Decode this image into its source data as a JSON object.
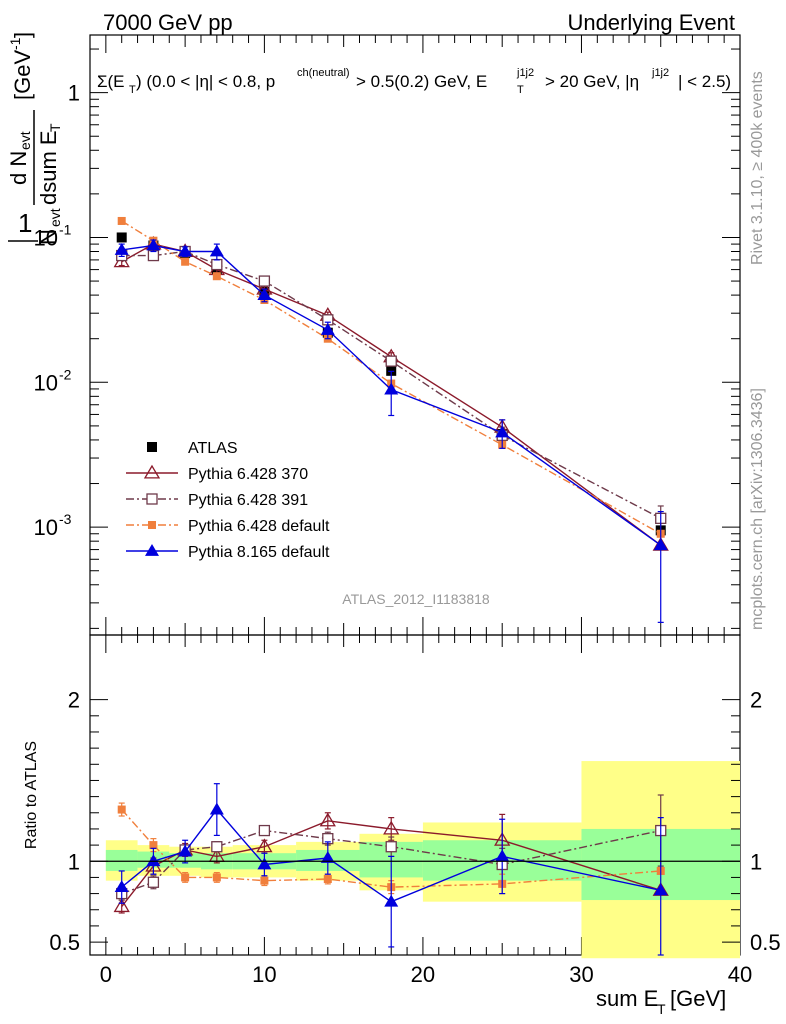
{
  "header": {
    "left": "7000 GeV pp",
    "right": "Underlying Event"
  },
  "side_labels": {
    "rivet": "Rivet 3.1.10, ≥ 400k events",
    "mcplots": "mcplots.cern.ch [arXiv:1306.3436]"
  },
  "analysis_id": "ATLAS_2012_I1183818",
  "chart_data": [
    {
      "type": "line",
      "title": "Σ(E_T) (0.0 < |η| < 0.8, p^ch(neutral) > 0.5(0.2) GeV, E_T^j1j2 > 20 GeV, |η^j1j2| < 2.5)",
      "xlabel": "sum E_T [GeV]",
      "ylabel": "1/N_evt dN_evt/dsum E_T [GeV^-1]",
      "yscale": "log",
      "xlim": [
        -1,
        40
      ],
      "ylim": [
        0.00018,
        2.5
      ],
      "x_ticks": [
        "0",
        "10",
        "20",
        "30",
        "40"
      ],
      "y_ticks": [
        "10^-3",
        "10^-2",
        "10^-1",
        "1"
      ],
      "legend_position": "lower-left",
      "series": [
        {
          "name": "ATLAS",
          "color": "#000000",
          "marker": "filled-square",
          "style": "none",
          "x": [
            1,
            3,
            5,
            7,
            10,
            14,
            18,
            25,
            35
          ],
          "y": [
            0.1,
            0.088,
            0.078,
            0.06,
            0.042,
            0.022,
            0.012,
            0.0044,
            0.00095
          ]
        },
        {
          "name": "Pythia 6.428 370",
          "color": "#8b1a2b",
          "marker": "open-triangle",
          "style": "solid",
          "x": [
            1,
            3,
            5,
            7,
            10,
            14,
            18,
            25,
            35
          ],
          "y": [
            0.068,
            0.09,
            0.08,
            0.06,
            0.044,
            0.029,
            0.015,
            0.0049,
            0.00075
          ],
          "err": [
            0.004,
            0.004,
            0.003,
            0.003,
            0.002,
            0.0015,
            0.001,
            0.0006,
            0
          ]
        },
        {
          "name": "Pythia 6.428 391",
          "color": "#6e3a4a",
          "marker": "open-square",
          "style": "dashdot",
          "x": [
            1,
            3,
            5,
            7,
            10,
            14,
            18,
            25,
            35
          ],
          "y": [
            0.075,
            0.075,
            0.08,
            0.065,
            0.05,
            0.027,
            0.014,
            0.0043,
            0.00115
          ],
          "err": [
            0.004,
            0.004,
            0.003,
            0.003,
            0.002,
            0.0015,
            0.001,
            0.0006,
            0.00025
          ]
        },
        {
          "name": "Pythia 6.428 default",
          "color": "#f07f3c",
          "marker": "filled-square-small",
          "style": "dashdot",
          "x": [
            1,
            3,
            5,
            7,
            10,
            14,
            18,
            25,
            35
          ],
          "y": [
            0.13,
            0.095,
            0.068,
            0.054,
            0.037,
            0.02,
            0.0098,
            0.0037,
            0.0009
          ],
          "err": [
            0,
            0,
            0,
            0,
            0,
            0,
            0,
            0,
            0
          ]
        },
        {
          "name": "Pythia 8.165 default",
          "color": "#0000dd",
          "marker": "filled-triangle",
          "style": "solid",
          "x": [
            1,
            3,
            5,
            7,
            10,
            14,
            18,
            25,
            35
          ],
          "y": [
            0.082,
            0.088,
            0.08,
            0.08,
            0.04,
            0.023,
            0.0089,
            0.0045,
            0.00075
          ],
          "err": [
            0.008,
            0.008,
            0.006,
            0.01,
            0.004,
            0.003,
            0.003,
            0.001,
            0.00053
          ]
        }
      ]
    },
    {
      "type": "line",
      "ylabel": "Ratio to ATLAS",
      "xlabel": "sum E_T [GeV]",
      "xlim": [
        -1,
        40
      ],
      "ylim": [
        0.42,
        2.4
      ],
      "y_ticks": [
        "0.5",
        "1",
        "2"
      ],
      "reference_line": 1,
      "bins": [
        [
          0,
          2
        ],
        [
          2,
          4
        ],
        [
          4,
          6
        ],
        [
          6,
          8
        ],
        [
          8,
          12
        ],
        [
          12,
          16
        ],
        [
          16,
          20
        ],
        [
          20,
          30
        ],
        [
          30,
          40
        ]
      ],
      "band_stat_sys": [
        [
          0.94,
          1.07
        ],
        [
          0.96,
          1.06
        ],
        [
          0.96,
          1.05
        ],
        [
          0.95,
          1.05
        ],
        [
          0.95,
          1.05
        ],
        [
          0.94,
          1.07
        ],
        [
          0.9,
          1.12
        ],
        [
          0.88,
          1.13
        ],
        [
          0.76,
          1.2
        ]
      ],
      "band_total": [
        [
          0.88,
          1.13
        ],
        [
          0.91,
          1.1
        ],
        [
          0.91,
          1.09
        ],
        [
          0.9,
          1.09
        ],
        [
          0.9,
          1.1
        ],
        [
          0.88,
          1.12
        ],
        [
          0.82,
          1.17
        ],
        [
          0.75,
          1.24
        ],
        [
          0.4,
          1.62
        ]
      ],
      "band_colors": {
        "inner": "#99ff99",
        "outer": "#ffff88"
      },
      "series": [
        {
          "name": "Pythia 6.428 370",
          "color": "#8b1a2b",
          "marker": "open-triangle",
          "style": "solid",
          "x": [
            1,
            3,
            5,
            7,
            10,
            14,
            18,
            25,
            35
          ],
          "y": [
            0.72,
            0.97,
            1.07,
            1.03,
            1.09,
            1.25,
            1.2,
            1.13,
            0.82
          ],
          "err": [
            0.04,
            0.05,
            0.04,
            0.04,
            0.04,
            0.05,
            0.07,
            0.16,
            0
          ]
        },
        {
          "name": "Pythia 6.428 391",
          "color": "#6e3a4a",
          "marker": "open-square",
          "style": "dashdot",
          "x": [
            1,
            3,
            5,
            7,
            10,
            14,
            18,
            25,
            35
          ],
          "y": [
            0.8,
            0.87,
            1.07,
            1.09,
            1.19,
            1.14,
            1.09,
            0.98,
            1.19
          ],
          "err": [
            0.04,
            0.04,
            0.03,
            0.03,
            0.03,
            0.04,
            0.06,
            0.1,
            0.22
          ]
        },
        {
          "name": "Pythia 6.428 default",
          "color": "#f07f3c",
          "marker": "filled-square-small",
          "style": "dashdot",
          "x": [
            1,
            3,
            5,
            7,
            10,
            14,
            18,
            25,
            35
          ],
          "y": [
            1.32,
            1.1,
            0.9,
            0.9,
            0.88,
            0.89,
            0.84,
            0.86,
            0.94
          ],
          "err": [
            0.04,
            0.04,
            0.03,
            0.03,
            0.03,
            0.03,
            0.04,
            0.06,
            0
          ]
        },
        {
          "name": "Pythia 8.165 default",
          "color": "#0000dd",
          "marker": "filled-triangle",
          "style": "solid",
          "x": [
            1,
            3,
            5,
            7,
            10,
            14,
            18,
            25,
            35
          ],
          "y": [
            0.84,
            1.0,
            1.06,
            1.32,
            0.98,
            1.02,
            0.75,
            1.03,
            0.82
          ],
          "err": [
            0.1,
            0.08,
            0.07,
            0.16,
            0.07,
            0.1,
            0.28,
            0.23,
            0.45
          ]
        }
      ]
    }
  ]
}
